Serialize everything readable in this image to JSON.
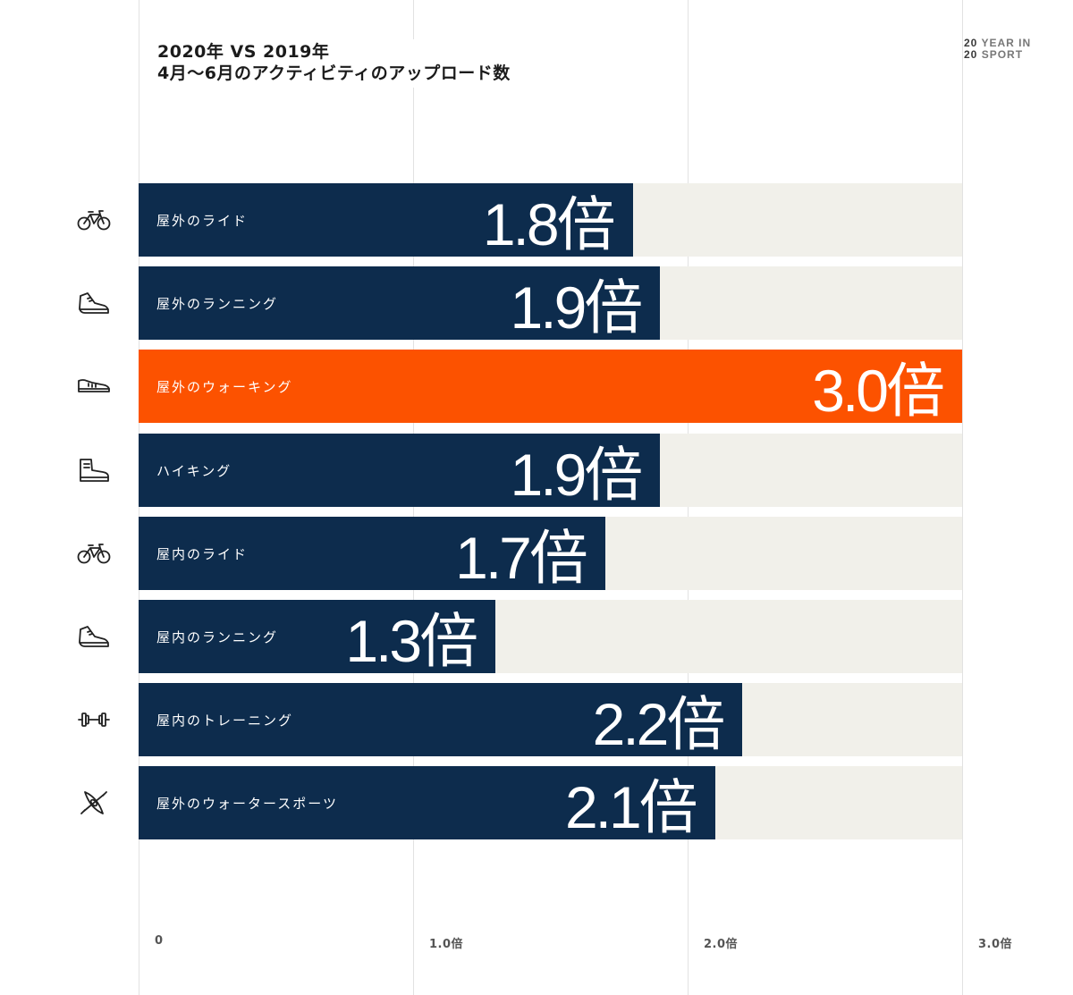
{
  "title": {
    "line1": "2020年 VS 2019年",
    "line2": "4月～6月のアクティビティのアップロード数"
  },
  "brand": {
    "line1_num": "20",
    "line1_text": "YEAR IN",
    "line2_num": "20",
    "line2_text": "SPORT"
  },
  "colors": {
    "bar": "#0d2c4d",
    "highlight": "#fc5200",
    "track": "#f1f0ea"
  },
  "chart_data": {
    "type": "bar",
    "orientation": "horizontal",
    "title": "2020年 VS 2019年 4月～6月のアクティビティのアップロード数",
    "xlim": [
      0,
      3.0
    ],
    "grid": true,
    "ticks": [
      "0",
      "1.0倍",
      "2.0倍",
      "3.0倍"
    ],
    "tick_values": [
      0,
      1.0,
      2.0,
      3.0
    ],
    "categories": [
      "屋外のライド",
      "屋外のランニング",
      "屋外のウォーキング",
      "ハイキング",
      "屋内のライド",
      "屋内のランニング",
      "屋内のトレーニング",
      "屋外のウォータースポーツ"
    ],
    "values": [
      1.8,
      1.9,
      3.0,
      1.9,
      1.7,
      1.3,
      2.2,
      2.1
    ],
    "value_labels": [
      "1.8倍",
      "1.9倍",
      "3.0倍",
      "1.9倍",
      "1.7倍",
      "1.3倍",
      "2.2倍",
      "2.1倍"
    ],
    "icons": [
      "bike-icon",
      "running-shoe-icon",
      "walking-shoe-icon",
      "hiking-boot-icon",
      "bike-icon",
      "running-shoe-icon",
      "dumbbell-icon",
      "kayak-icon"
    ],
    "highlight_index": 2
  }
}
